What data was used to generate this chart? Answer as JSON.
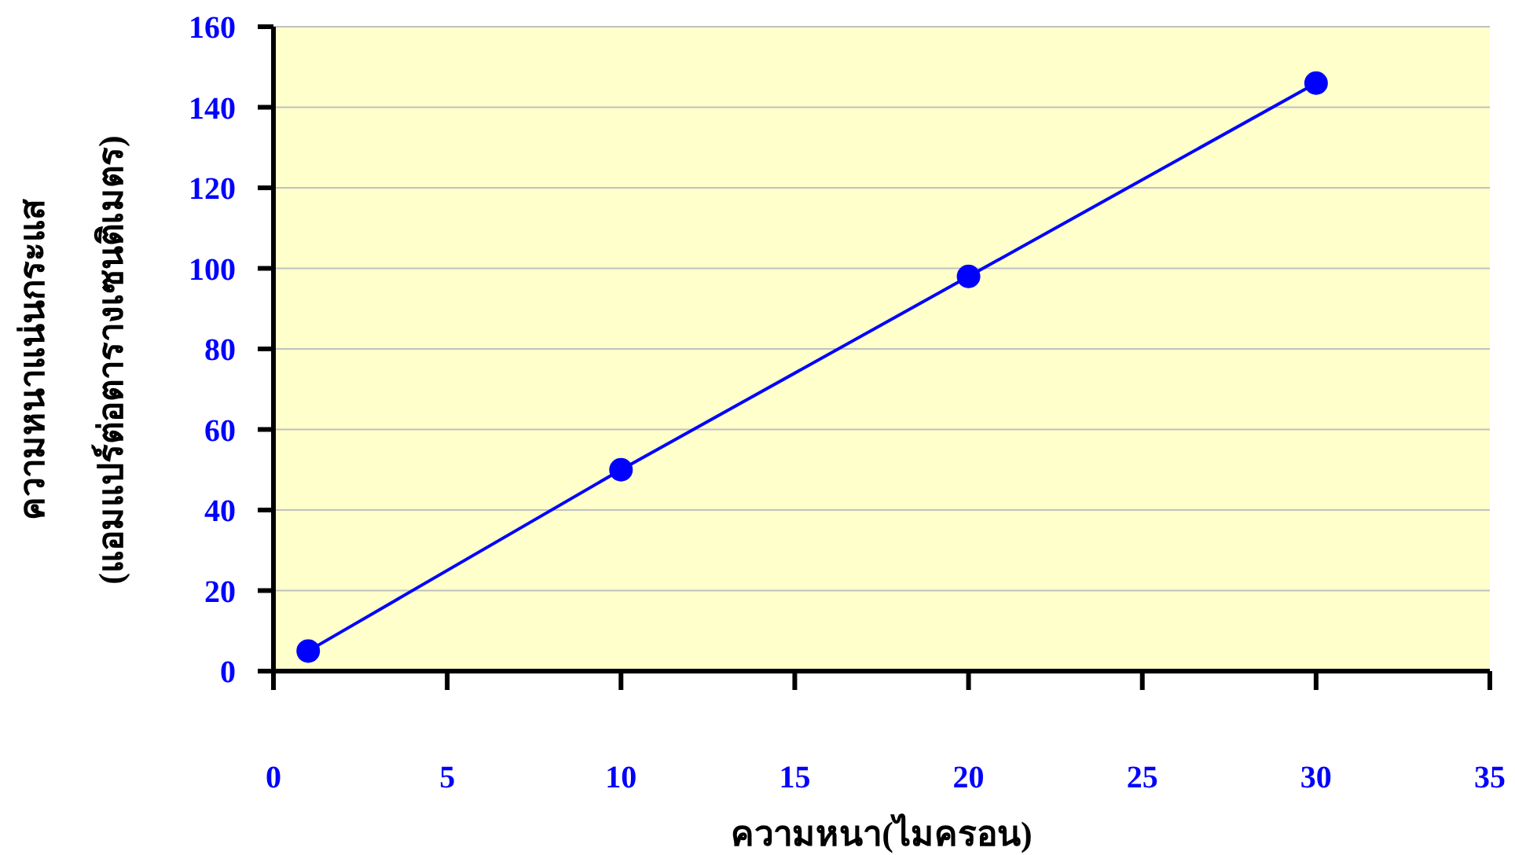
{
  "chart_data": {
    "type": "line",
    "xlabel": "ความหนา(ไมครอน)",
    "ylabel": "ความหนาแน่นกระแส\n(แอมแปร์ต่อตารางเซนติเมตร)",
    "x": [
      1,
      10,
      20,
      30
    ],
    "series": [
      {
        "color": "#0000ff",
        "values": [
          5,
          50,
          98,
          146
        ]
      }
    ],
    "xlim": [
      0,
      35
    ],
    "xticks": [
      0,
      5,
      10,
      15,
      20,
      25,
      30,
      35
    ],
    "ylim": [
      0,
      160
    ],
    "yticks": [
      0,
      20,
      40,
      60,
      80,
      100,
      120,
      140,
      160
    ],
    "grid": "y",
    "marker": "circle",
    "line_style": "solid"
  }
}
